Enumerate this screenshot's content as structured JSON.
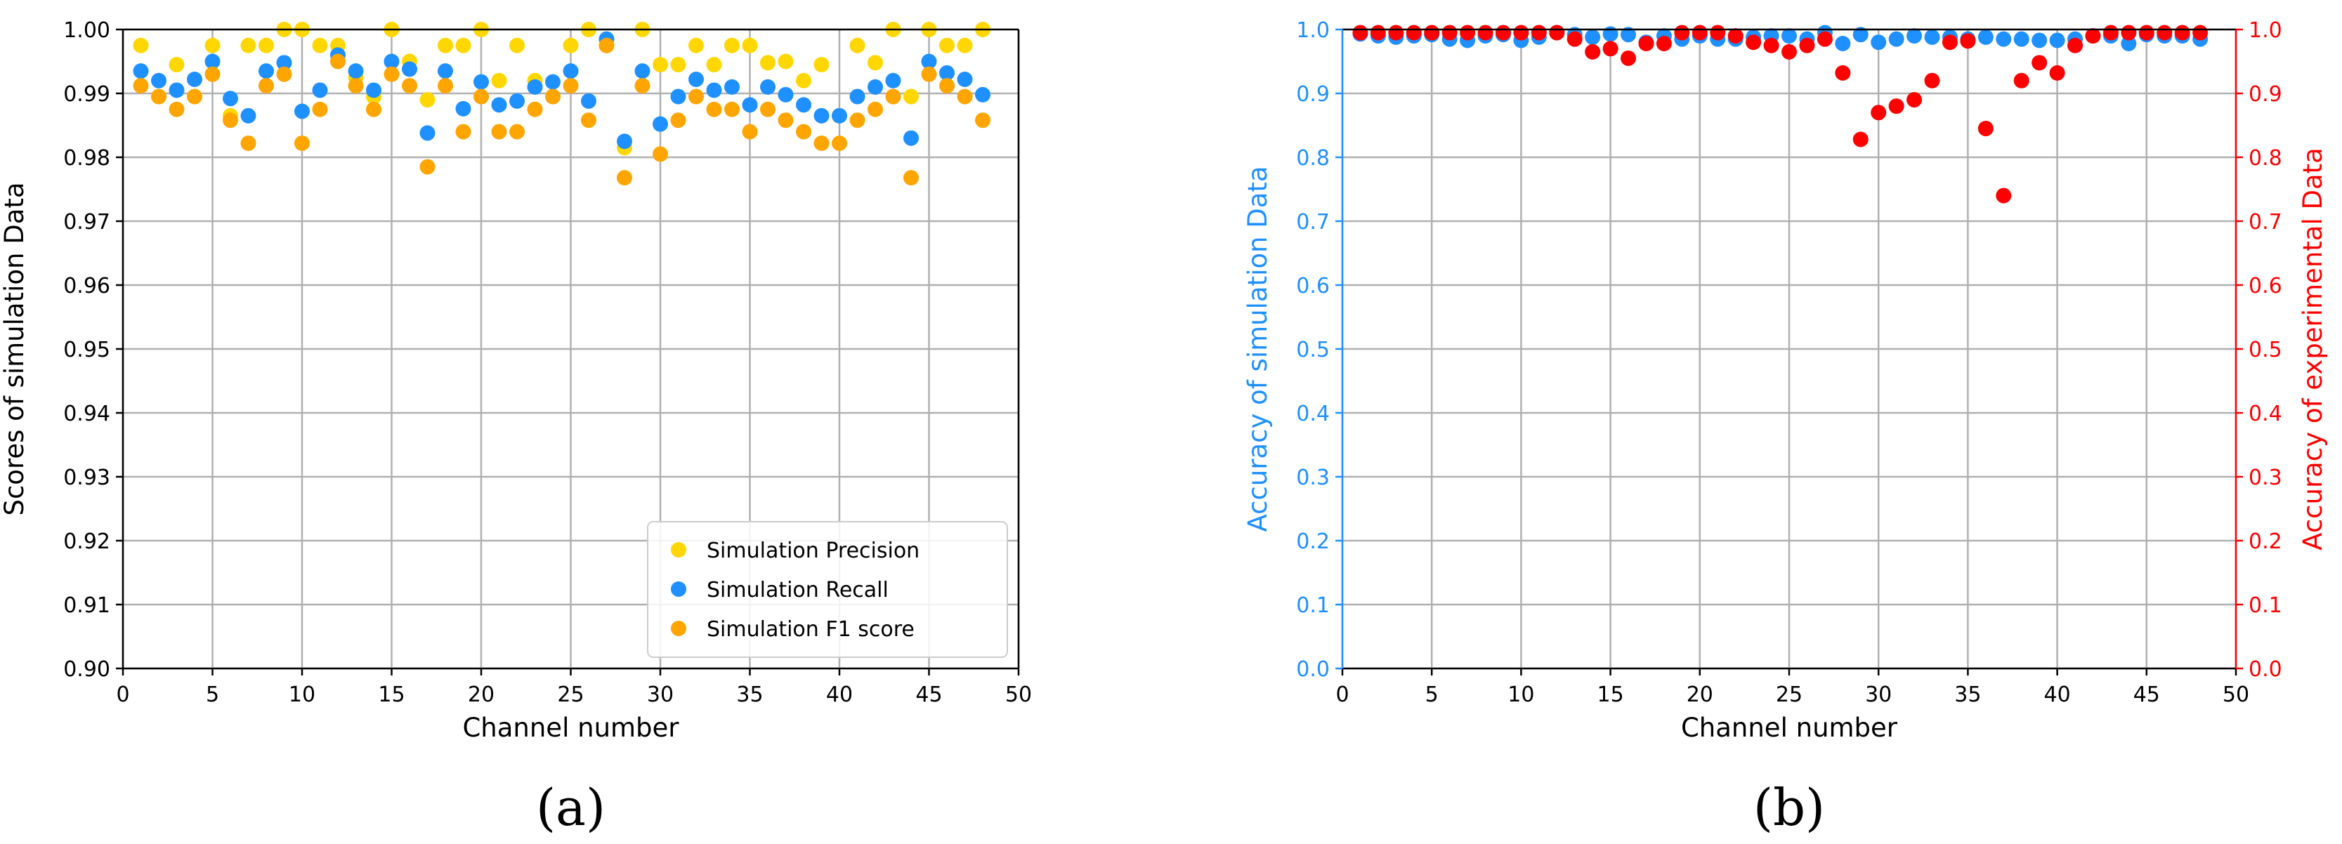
{
  "chart_data": [
    {
      "type": "scatter",
      "panel_label": "(a)",
      "xlabel": "Channel number",
      "ylabel": "Scores of simulation Data",
      "xlim": [
        0,
        50
      ],
      "ylim": [
        0.9,
        1.0
      ],
      "xticks": [
        0,
        5,
        10,
        15,
        20,
        25,
        30,
        35,
        40,
        45,
        50
      ],
      "xtick_labels": [
        "0",
        "5",
        "10",
        "15",
        "20",
        "25",
        "30",
        "35",
        "40",
        "45",
        "50"
      ],
      "yticks": [
        0.9,
        0.91,
        0.92,
        0.93,
        0.94,
        0.95,
        0.96,
        0.97,
        0.98,
        0.99,
        1.0
      ],
      "ytick_labels": [
        "0.90",
        "0.91",
        "0.92",
        "0.93",
        "0.94",
        "0.95",
        "0.96",
        "0.97",
        "0.98",
        "0.99",
        "1.00"
      ],
      "grid": true,
      "legend_position": "bottom-right",
      "series": [
        {
          "name": "Simulation Precision",
          "color": "#FFD700",
          "x": [
            1,
            2,
            3,
            4,
            5,
            6,
            7,
            8,
            9,
            10,
            11,
            12,
            13,
            14,
            15,
            16,
            17,
            18,
            19,
            20,
            21,
            22,
            23,
            24,
            25,
            26,
            27,
            28,
            29,
            30,
            31,
            32,
            33,
            34,
            35,
            36,
            37,
            38,
            39,
            40,
            41,
            42,
            43,
            44,
            45,
            46,
            47,
            48
          ],
          "values": [
            0.9975,
            0.9895,
            0.9945,
            0.9895,
            0.9975,
            0.9865,
            0.9975,
            0.9975,
            1.0,
            1.0,
            0.9975,
            0.9975,
            0.9925,
            0.9895,
            1.0,
            0.995,
            0.989,
            0.9975,
            0.9975,
            1.0,
            0.992,
            0.9975,
            0.992,
            0.9895,
            0.9975,
            1.0,
            0.9975,
            0.9815,
            1.0,
            0.9945,
            0.9945,
            0.9975,
            0.9945,
            0.9975,
            0.9975,
            0.9948,
            0.995,
            0.992,
            0.9945,
            0.9865,
            0.9975,
            0.9948,
            1.0,
            0.9895,
            1.0,
            0.9975,
            0.9975,
            1.0
          ]
        },
        {
          "name": "Simulation Recall",
          "color": "#1E90FF",
          "x": [
            1,
            2,
            3,
            4,
            5,
            6,
            7,
            8,
            9,
            10,
            11,
            12,
            13,
            14,
            15,
            16,
            17,
            18,
            19,
            20,
            21,
            22,
            23,
            24,
            25,
            26,
            27,
            28,
            29,
            30,
            31,
            32,
            33,
            34,
            35,
            36,
            37,
            38,
            39,
            40,
            41,
            42,
            43,
            44,
            45,
            46,
            47,
            48
          ],
          "values": [
            0.9935,
            0.992,
            0.9905,
            0.9922,
            0.995,
            0.9892,
            0.9865,
            0.9935,
            0.9948,
            0.9872,
            0.9905,
            0.996,
            0.9935,
            0.9905,
            0.995,
            0.9938,
            0.9838,
            0.9935,
            0.9876,
            0.9918,
            0.9882,
            0.9888,
            0.991,
            0.9918,
            0.9935,
            0.9888,
            0.9985,
            0.9825,
            0.9935,
            0.9852,
            0.9895,
            0.9922,
            0.9905,
            0.991,
            0.9882,
            0.991,
            0.9898,
            0.9882,
            0.9865,
            0.9865,
            0.9895,
            0.991,
            0.992,
            0.983,
            0.995,
            0.9932,
            0.9922,
            0.9898
          ]
        },
        {
          "name": "Simulation F1 score",
          "color": "#FFA500",
          "x": [
            1,
            2,
            3,
            4,
            5,
            6,
            7,
            8,
            9,
            10,
            11,
            12,
            13,
            14,
            15,
            16,
            17,
            18,
            19,
            20,
            21,
            22,
            23,
            24,
            25,
            26,
            27,
            28,
            29,
            30,
            31,
            32,
            33,
            34,
            35,
            36,
            37,
            38,
            39,
            40,
            41,
            42,
            43,
            44,
            45,
            46,
            47,
            48
          ],
          "values": [
            0.9912,
            0.9895,
            0.9875,
            0.9895,
            0.993,
            0.9858,
            0.9822,
            0.9912,
            0.993,
            0.9822,
            0.9875,
            0.995,
            0.9912,
            0.9875,
            0.993,
            0.9912,
            0.9785,
            0.9912,
            0.984,
            0.9895,
            0.984,
            0.984,
            0.9875,
            0.9895,
            0.9912,
            0.9858,
            0.9975,
            0.9768,
            0.9912,
            0.9805,
            0.9858,
            0.9895,
            0.9875,
            0.9875,
            0.984,
            0.9875,
            0.9858,
            0.984,
            0.9822,
            0.9822,
            0.9858,
            0.9875,
            0.9895,
            0.9768,
            0.993,
            0.9912,
            0.9895,
            0.9858
          ]
        }
      ]
    },
    {
      "type": "scatter",
      "panel_label": "(b)",
      "xlabel": "Channel number",
      "ylabel": "Accuracy of simulation Data",
      "ylabel_right": "Accuracy of experimental Data",
      "xlim": [
        0,
        50
      ],
      "ylim": [
        0.0,
        1.0
      ],
      "ylim_right": [
        0.0,
        1.0
      ],
      "xticks": [
        0,
        5,
        10,
        15,
        20,
        25,
        30,
        35,
        40,
        45,
        50
      ],
      "xtick_labels": [
        "0",
        "5",
        "10",
        "15",
        "20",
        "25",
        "30",
        "35",
        "40",
        "45",
        "50"
      ],
      "yticks": [
        0.0,
        0.1,
        0.2,
        0.3,
        0.4,
        0.5,
        0.6,
        0.7,
        0.8,
        0.9,
        1.0
      ],
      "ytick_labels": [
        "0.0",
        "0.1",
        "0.2",
        "0.3",
        "0.4",
        "0.5",
        "0.6",
        "0.7",
        "0.8",
        "0.9",
        "1.0"
      ],
      "ytick_labels_right": [
        "0.0",
        "0.1",
        "0.2",
        "0.3",
        "0.4",
        "0.5",
        "0.6",
        "0.7",
        "0.8",
        "0.9",
        "1.0"
      ],
      "left_axis_color": "#1E90FF",
      "right_axis_color": "#FF0000",
      "grid": true,
      "series": [
        {
          "name": "Accuracy of simulation Data",
          "axis": "left",
          "color": "#1E90FF",
          "x": [
            1,
            2,
            3,
            4,
            5,
            6,
            7,
            8,
            9,
            10,
            11,
            12,
            13,
            14,
            15,
            16,
            17,
            18,
            19,
            20,
            21,
            22,
            23,
            24,
            25,
            26,
            27,
            28,
            29,
            30,
            31,
            32,
            33,
            34,
            35,
            36,
            37,
            38,
            39,
            40,
            41,
            42,
            43,
            44,
            45,
            46,
            47,
            48
          ],
          "values": [
            0.993,
            0.99,
            0.988,
            0.99,
            0.992,
            0.985,
            0.983,
            0.99,
            0.992,
            0.983,
            0.988,
            0.995,
            0.992,
            0.988,
            0.993,
            0.992,
            0.98,
            0.99,
            0.985,
            0.99,
            0.985,
            0.985,
            0.988,
            0.99,
            0.99,
            0.985,
            0.995,
            0.978,
            0.992,
            0.98,
            0.985,
            0.99,
            0.988,
            0.988,
            0.985,
            0.988,
            0.985,
            0.985,
            0.983,
            0.983,
            0.985,
            0.99,
            0.99,
            0.978,
            0.992,
            0.99,
            0.99,
            0.985
          ]
        },
        {
          "name": "Accuracy of experimental Data",
          "axis": "right",
          "color": "#FF0000",
          "x": [
            1,
            2,
            3,
            4,
            5,
            6,
            7,
            8,
            9,
            10,
            11,
            12,
            13,
            14,
            15,
            16,
            17,
            18,
            19,
            20,
            21,
            22,
            23,
            24,
            25,
            26,
            27,
            28,
            29,
            30,
            31,
            32,
            33,
            34,
            35,
            36,
            37,
            38,
            39,
            40,
            41,
            42,
            43,
            44,
            45,
            46,
            47,
            48
          ],
          "values": [
            0.995,
            0.995,
            0.995,
            0.995,
            0.995,
            0.995,
            0.995,
            0.995,
            0.995,
            0.995,
            0.995,
            0.995,
            0.985,
            0.965,
            0.97,
            0.955,
            0.978,
            0.978,
            0.995,
            0.995,
            0.995,
            0.99,
            0.98,
            0.975,
            0.965,
            0.975,
            0.985,
            0.932,
            0.828,
            0.87,
            0.88,
            0.89,
            0.92,
            0.98,
            0.982,
            0.845,
            0.74,
            0.92,
            0.948,
            0.932,
            0.975,
            0.99,
            0.995,
            0.995,
            0.995,
            0.995,
            0.995,
            0.995
          ]
        }
      ]
    }
  ]
}
